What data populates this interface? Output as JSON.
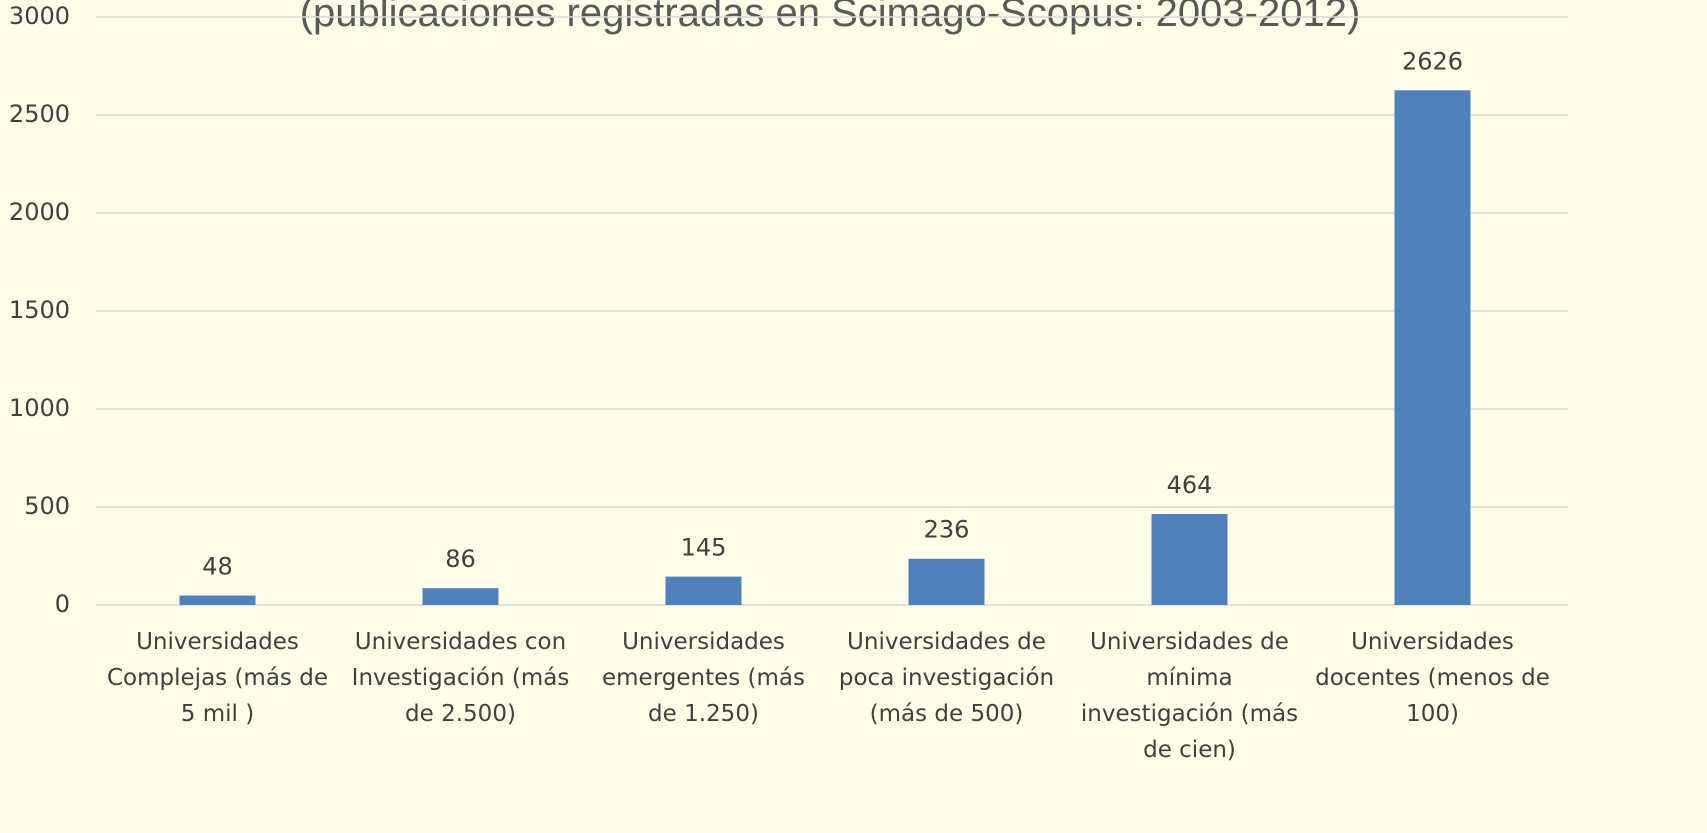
{
  "chart_data": {
    "type": "bar",
    "title": "(publicaciones registradas en Scimago-Scopus: 2003-2012)",
    "categories": [
      "Universidades Complejas (más de 5 mil )",
      "Universidades con Investigación (más de 2.500)",
      "Universidades emergentes (más de 1.250)",
      "Universidades de poca investigación (más de 500)",
      "Universidades de mínima investigación (más de cien)",
      "Universidades docentes (menos de 100)"
    ],
    "values": [
      48,
      86,
      145,
      236,
      464,
      2626
    ],
    "color": "#4f81bd",
    "ylim": [
      0,
      3000
    ],
    "yticks": [
      0,
      500,
      1000,
      1500,
      2000,
      2500,
      3000
    ],
    "grid": true
  }
}
